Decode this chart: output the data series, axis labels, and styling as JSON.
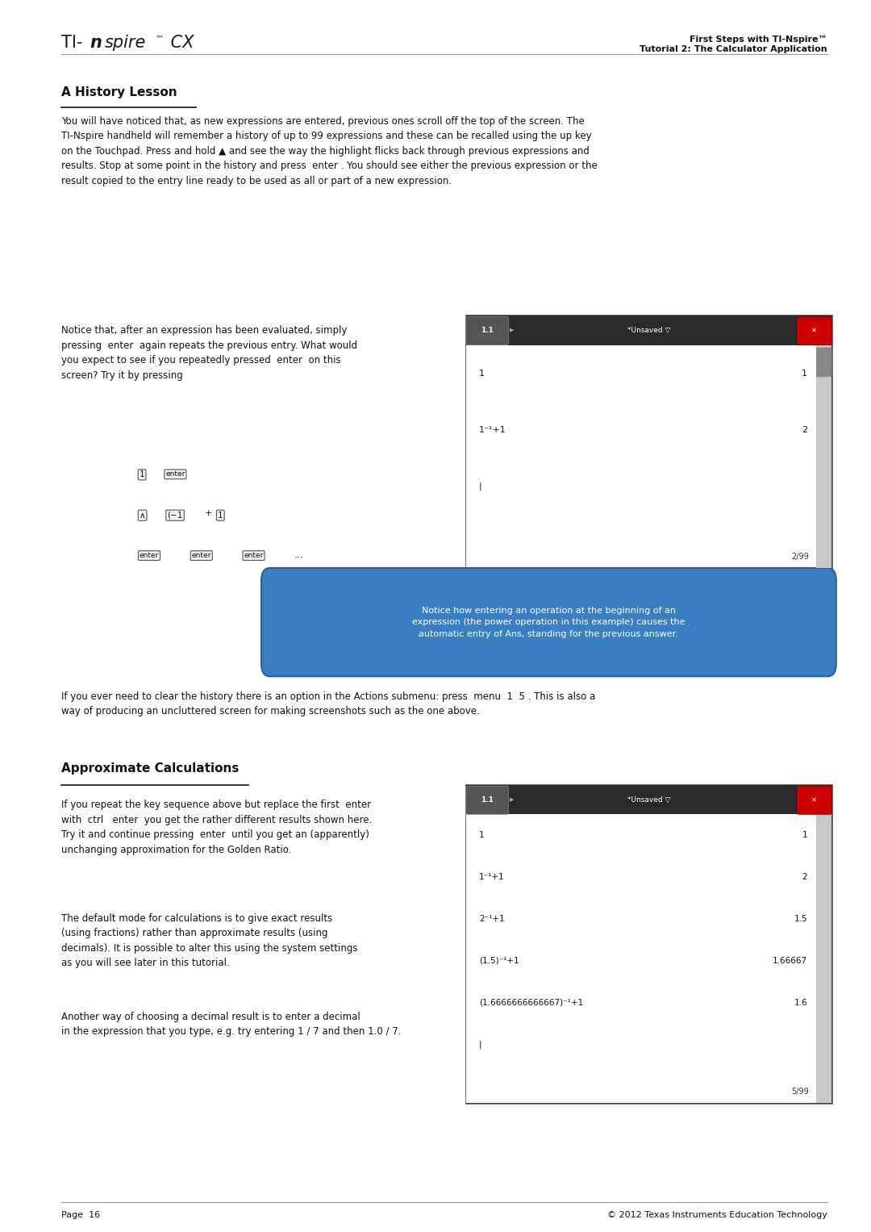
{
  "page_width": 10.8,
  "page_height": 15.27,
  "bg_color": "#ffffff",
  "header_right_line1": "First Steps with TI-Nspire™",
  "header_right_line2": "Tutorial 2: The Calculator Application",
  "section1_title": "A History Lesson",
  "section1_para1": "You will have noticed that, as new expressions are entered, previous ones scroll off the top of the screen. The\nTI-Nspire handheld will remember a history of up to 99 expressions and these can be recalled using the up key\non the Touchpad. Press and hold ▲ and see the way the highlight flicks back through previous expressions and\nresults. Stop at some point in the history and press  enter . You should see either the previous expression or the\nresult copied to the entry line ready to be used as all or part of a new expression.",
  "section1_para2_left": "Notice that, after an expression has been evaluated, simply\npressing  enter  again repeats the previous entry. What would\nyou expect to see if you repeatedly pressed  enter  on this\nscreen? Try it by pressing",
  "screen1_rows": [
    {
      "expr": "1",
      "result": "1"
    },
    {
      "expr": "1⁻¹+1",
      "result": "2"
    },
    {
      "expr": "|",
      "result": ""
    }
  ],
  "screen1_counter": "2/99",
  "callout_text": "Notice how entering an operation at the beginning of an\nexpression (the power operation in this example) causes the\nautomatic entry of Ans, standing for the previous answer.",
  "section1_para3": "If you ever need to clear the history there is an option in the Actions submenu: press  menu  1  5 . This is also a\nway of producing an uncluttered screen for making screenshots such as the one above.",
  "section2_title": "Approximate Calculations",
  "section2_para1_left": "If you repeat the key sequence above but replace the first  enter \nwith  ctrl   enter  you get the rather different results shown here.\nTry it and continue pressing  enter  until you get an (apparently)\nunchanging approximation for the Golden Ratio.",
  "section2_para2_left": "The default mode for calculations is to give exact results\n(using fractions) rather than approximate results (using\ndecimals). It is possible to alter this using the system settings\nas you will see later in this tutorial.",
  "screen2_rows": [
    {
      "expr": "1",
      "result": "1"
    },
    {
      "expr": "1⁻¹+1",
      "result": "2"
    },
    {
      "expr": "2⁻¹+1",
      "result": "1.5"
    },
    {
      "expr": "(1.5)⁻¹+1",
      "result": "1.66667"
    },
    {
      "expr": "(1.6666666666667)⁻¹+1",
      "result": "1.6"
    },
    {
      "expr": "|",
      "result": ""
    }
  ],
  "screen2_counter": "5/99",
  "section2_para3": "Another way of choosing a decimal result is to enter a decimal\nin the expression that you type, e.g. try entering 1 / 7 and then 1.0 / 7.",
  "footer_left": "Page  16",
  "footer_right": "© 2012 Texas Instruments Education Technology"
}
